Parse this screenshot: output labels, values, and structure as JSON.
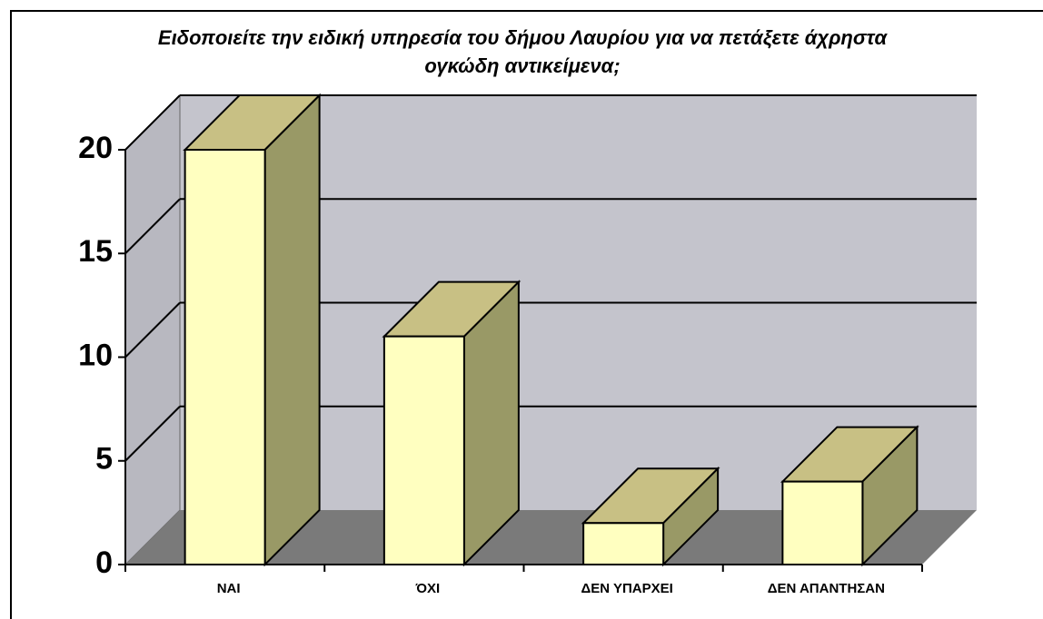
{
  "chart_data": {
    "type": "bar3d",
    "title": "Ειδοποιείτε την ειδική υπηρεσία του δήμου Λαυρίου για να πετάξετε άχρηστα ογκώδη αντικείμενα;",
    "categories": [
      "ΝΑΙ",
      "ΌΧΙ",
      "ΔΕΝ ΥΠΑΡΧΕΙ",
      "ΔΕΝ ΑΠΑΝΤΗΣΑΝ"
    ],
    "values": [
      20,
      11,
      2,
      4
    ],
    "color": "#ffffc0",
    "ylim": [
      0,
      20
    ],
    "yticks": [
      0,
      5,
      10,
      15,
      20
    ],
    "grid": true
  }
}
